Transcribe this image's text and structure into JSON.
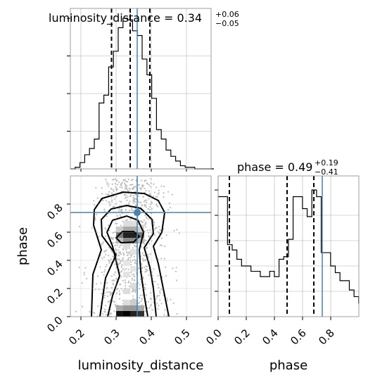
{
  "chart_data": {
    "type": "corner",
    "parameters": [
      "luminosity_distance",
      "phase"
    ],
    "truths": {
      "luminosity_distance": 0.36,
      "phase": 0.74
    },
    "titles": {
      "luminosity_distance": {
        "prefix": "luminosity_distance = 0.34",
        "plus": "+0.06",
        "minus": "−0.05"
      },
      "phase": {
        "prefix": "phase = 0.49",
        "plus": "+0.19",
        "minus": "−0.41"
      }
    },
    "axis_labels": {
      "x_left": "luminosity_distance",
      "x_right": "phase",
      "y_left": "phase"
    },
    "xlim_distance": [
      0.17,
      0.57
    ],
    "xlim_phase": [
      0.0,
      1.0
    ],
    "ylim_phase": [
      0.0,
      1.0
    ],
    "ticks_distance": [
      "0.2",
      "0.3",
      "0.4",
      "0.5"
    ],
    "ticks_phase": [
      "0.0",
      "0.2",
      "0.4",
      "0.6",
      "0.8"
    ],
    "hist_distance": {
      "edges_start": 0.17,
      "bin_width": 0.0136,
      "counts": [
        0,
        1,
        4,
        9,
        13,
        19,
        42,
        47,
        65,
        75,
        90,
        96,
        95,
        88,
        85,
        70,
        60,
        45,
        25,
        19,
        12,
        8,
        5,
        2,
        1,
        1,
        0,
        0,
        0,
        0
      ],
      "quantiles": [
        0.287,
        0.34,
        0.396
      ]
    },
    "hist_phase": {
      "edges_start": 0.0,
      "bin_width": 0.0333,
      "counts": [
        90,
        90,
        54,
        50,
        43,
        38,
        38,
        34,
        34,
        30,
        30,
        34,
        30,
        43,
        45,
        58,
        90,
        90,
        81,
        75,
        95,
        90,
        48,
        48,
        38,
        33,
        27,
        27,
        20,
        15,
        10
      ],
      "quantiles": [
        0.08,
        0.49,
        0.68
      ]
    },
    "grid": true
  }
}
